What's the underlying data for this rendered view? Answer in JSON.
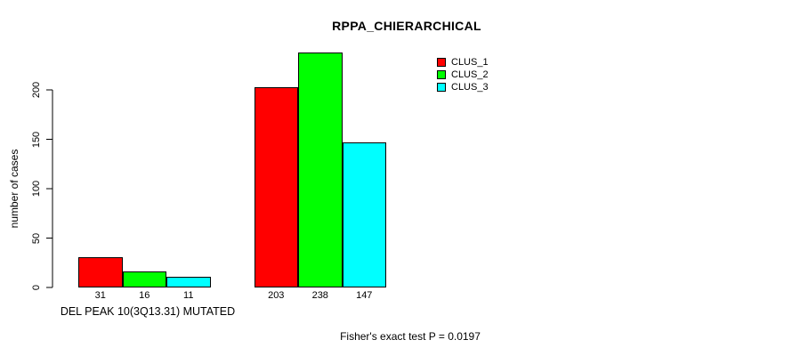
{
  "title": "RPPA_CHIERARCHICAL",
  "footer": "Fisher's exact test P = 0.0197",
  "colors": {
    "clus_1": "#ff0000",
    "clus_2": "#00ff00",
    "clus_3": "#00ffff",
    "axis": "#000000",
    "background": "#ffffff"
  },
  "chart_data": {
    "type": "bar",
    "title": "RPPA_CHIERARCHICAL",
    "xlabel": "",
    "ylabel": "number of cases",
    "ylim": [
      0,
      200
    ],
    "yticks": [
      0,
      50,
      100,
      150,
      200
    ],
    "grid": false,
    "legend_position": "top-right",
    "series": [
      {
        "name": "CLUS_1",
        "color": "#ff0000",
        "values": [
          31,
          203
        ]
      },
      {
        "name": "CLUS_2",
        "color": "#00ff00",
        "values": [
          16,
          238
        ]
      },
      {
        "name": "CLUS_3",
        "color": "#00ffff",
        "values": [
          11,
          147
        ]
      }
    ],
    "groups": [
      {
        "label": "DEL PEAK 10(3Q13.31) MUTATED",
        "values": [
          31,
          16,
          11
        ]
      },
      {
        "label": "",
        "values": [
          203,
          238,
          147
        ]
      }
    ],
    "bar_value_labels": [
      "31",
      "16",
      "11",
      "203",
      "238",
      "147"
    ],
    "annotation": "Fisher's exact test P = 0.0197"
  }
}
